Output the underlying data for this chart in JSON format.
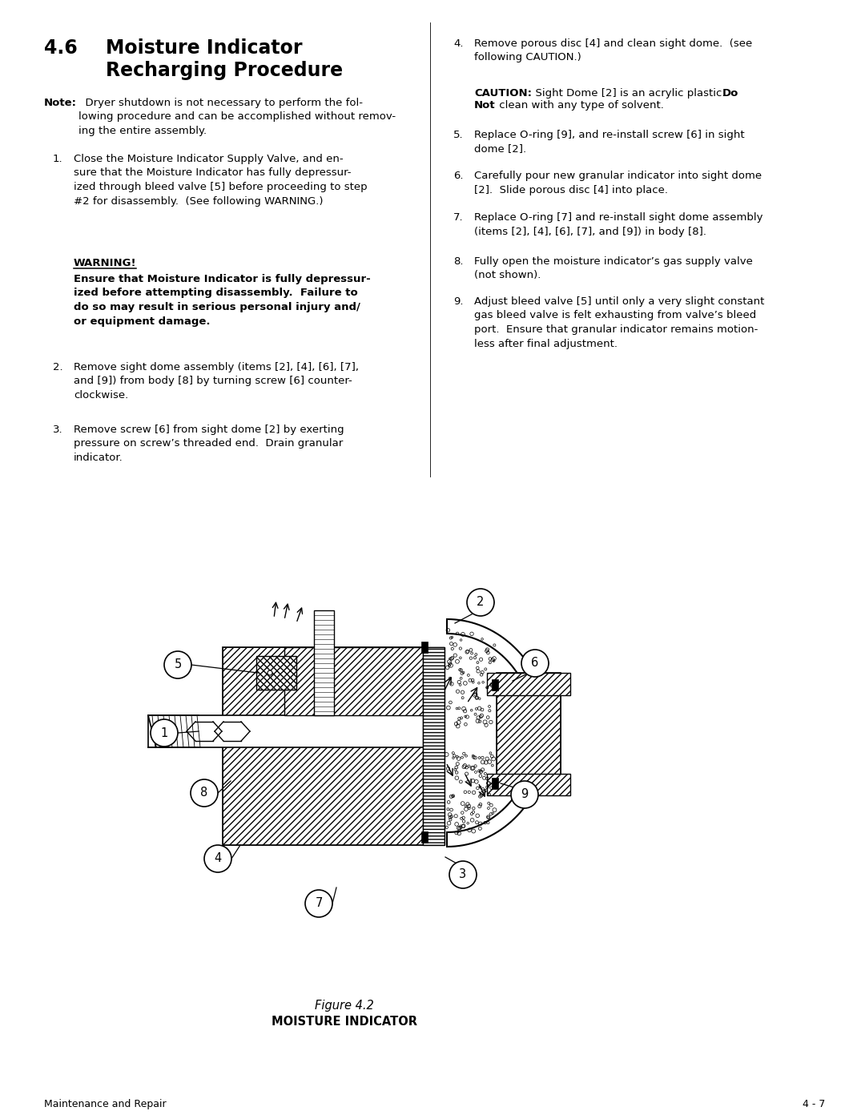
{
  "bg_color": "#ffffff",
  "text_color": "#000000",
  "title_num": "4.6",
  "title_line1": "Moisture Indicator",
  "title_line2": "Recharging Procedure",
  "note_bold": "Note:",
  "note_rest": "  Dryer shutdown is not necessary to perform the fol-\nlowing procedure and can be accomplished without remov-\ning the entire assembly.",
  "item1_num": "1.",
  "item1_text": "Close the Moisture Indicator Supply Valve, and en-\nsure that the Moisture Indicator has fully depressur-\nized through bleed valve [5] before proceeding to step\n#2 for disassembly.  (See following WARNING.)",
  "warning_head": "WARNING!",
  "warning_body": "Ensure that Moisture Indicator is fully depressur-\nized before attempting disassembly.  Failure to\ndo so may result in serious personal injury and/\nor equipment damage.",
  "item2_num": "2.",
  "item2_text": "Remove sight dome assembly (items [2], [4], [6], [7],\nand [9]) from body [8] by turning screw [6] counter-\nclockwise.",
  "item3_num": "3.",
  "item3_text": "Remove screw [6] from sight dome [2] by exerting\npressure on screw’s threaded end.  Drain granular\nindicator.",
  "item4_num": "4.",
  "item4_text": "Remove porous disc [4] and clean sight dome.  (see\nfollowing CAUTION.)",
  "caution_head": "CAUTION:",
  "caution_line1a": "  Sight Dome [2] is an acrylic plastic.  ",
  "caution_line1b_bold": "Do",
  "caution_line2a_bold": "Not",
  "caution_line2b": " clean with any type of solvent.",
  "item5_num": "5.",
  "item5_text": "Replace O-ring [9], and re-install screw [6] in sight\ndome [2].",
  "item6_num": "6.",
  "item6_text": "Carefully pour new granular indicator into sight dome\n[2].  Slide porous disc [4] into place.",
  "item7_num": "7.",
  "item7_text": "Replace O-ring [7] and re-install sight dome assembly\n(items [2], [4], [6], [7], and [9]) in body [8].",
  "item8_num": "8.",
  "item8_text": "Fully open the moisture indicator’s gas supply valve\n(not shown).",
  "item9_num": "9.",
  "item9_text": "Adjust bleed valve [5] until only a very slight constant\ngas bleed valve is felt exhausting from valve’s bleed\nport.  Ensure that granular indicator remains motion-\nless after final adjustment.",
  "figure_label": "Figure 4.2",
  "figure_title": "MOISTURE INDICATOR",
  "footer_left": "Maintenance and Repair",
  "footer_right": "4 - 7"
}
